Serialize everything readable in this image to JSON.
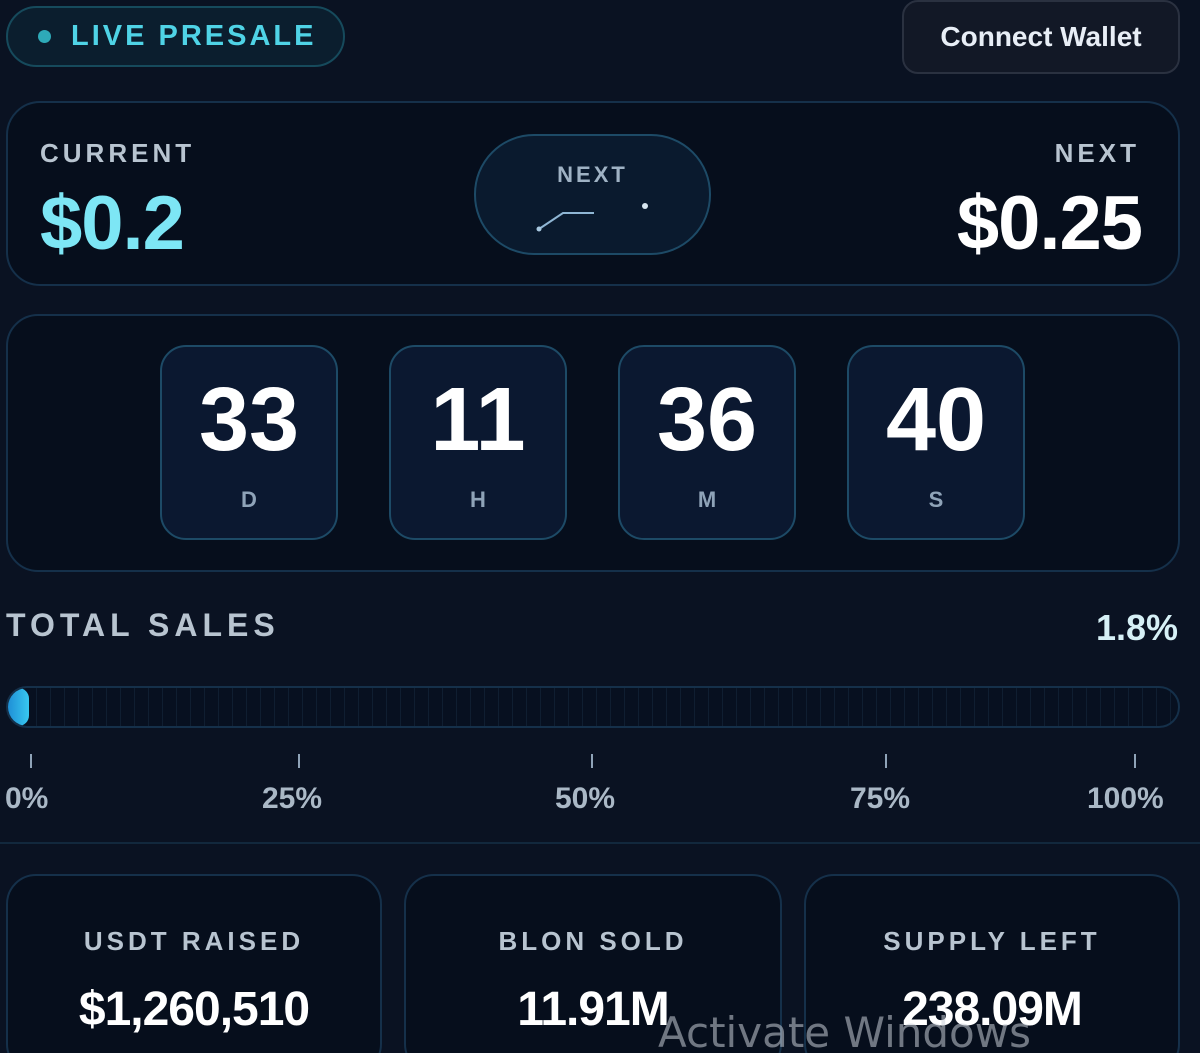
{
  "header": {
    "badge_label": "LIVE PRESALE",
    "wallet_button": "Connect Wallet"
  },
  "price": {
    "current_label": "CURRENT",
    "current_value": "$0.2",
    "next_pill_label": "NEXT",
    "next_label": "NEXT",
    "next_value": "$0.25"
  },
  "countdown": [
    {
      "value": "33",
      "unit": "D"
    },
    {
      "value": "11",
      "unit": "H"
    },
    {
      "value": "36",
      "unit": "M"
    },
    {
      "value": "40",
      "unit": "S"
    }
  ],
  "sales": {
    "label": "TOTAL SALES",
    "percent_text": "1.8%",
    "progress": 1.8,
    "ticks": [
      "0%",
      "25%",
      "50%",
      "75%",
      "100%"
    ]
  },
  "stats": [
    {
      "label": "USDT RAISED",
      "value": "$1,260,510"
    },
    {
      "label": "BLON SOLD",
      "value": "11.91M"
    },
    {
      "label": "SUPPLY LEFT",
      "value": "238.09M"
    }
  ],
  "watermark": "Activate Windows",
  "colors": {
    "accent_cyan": "#7de6f5",
    "badge_text": "#4fd3e6",
    "progress_fill": "#38c8f0",
    "background": "#0a1222"
  }
}
